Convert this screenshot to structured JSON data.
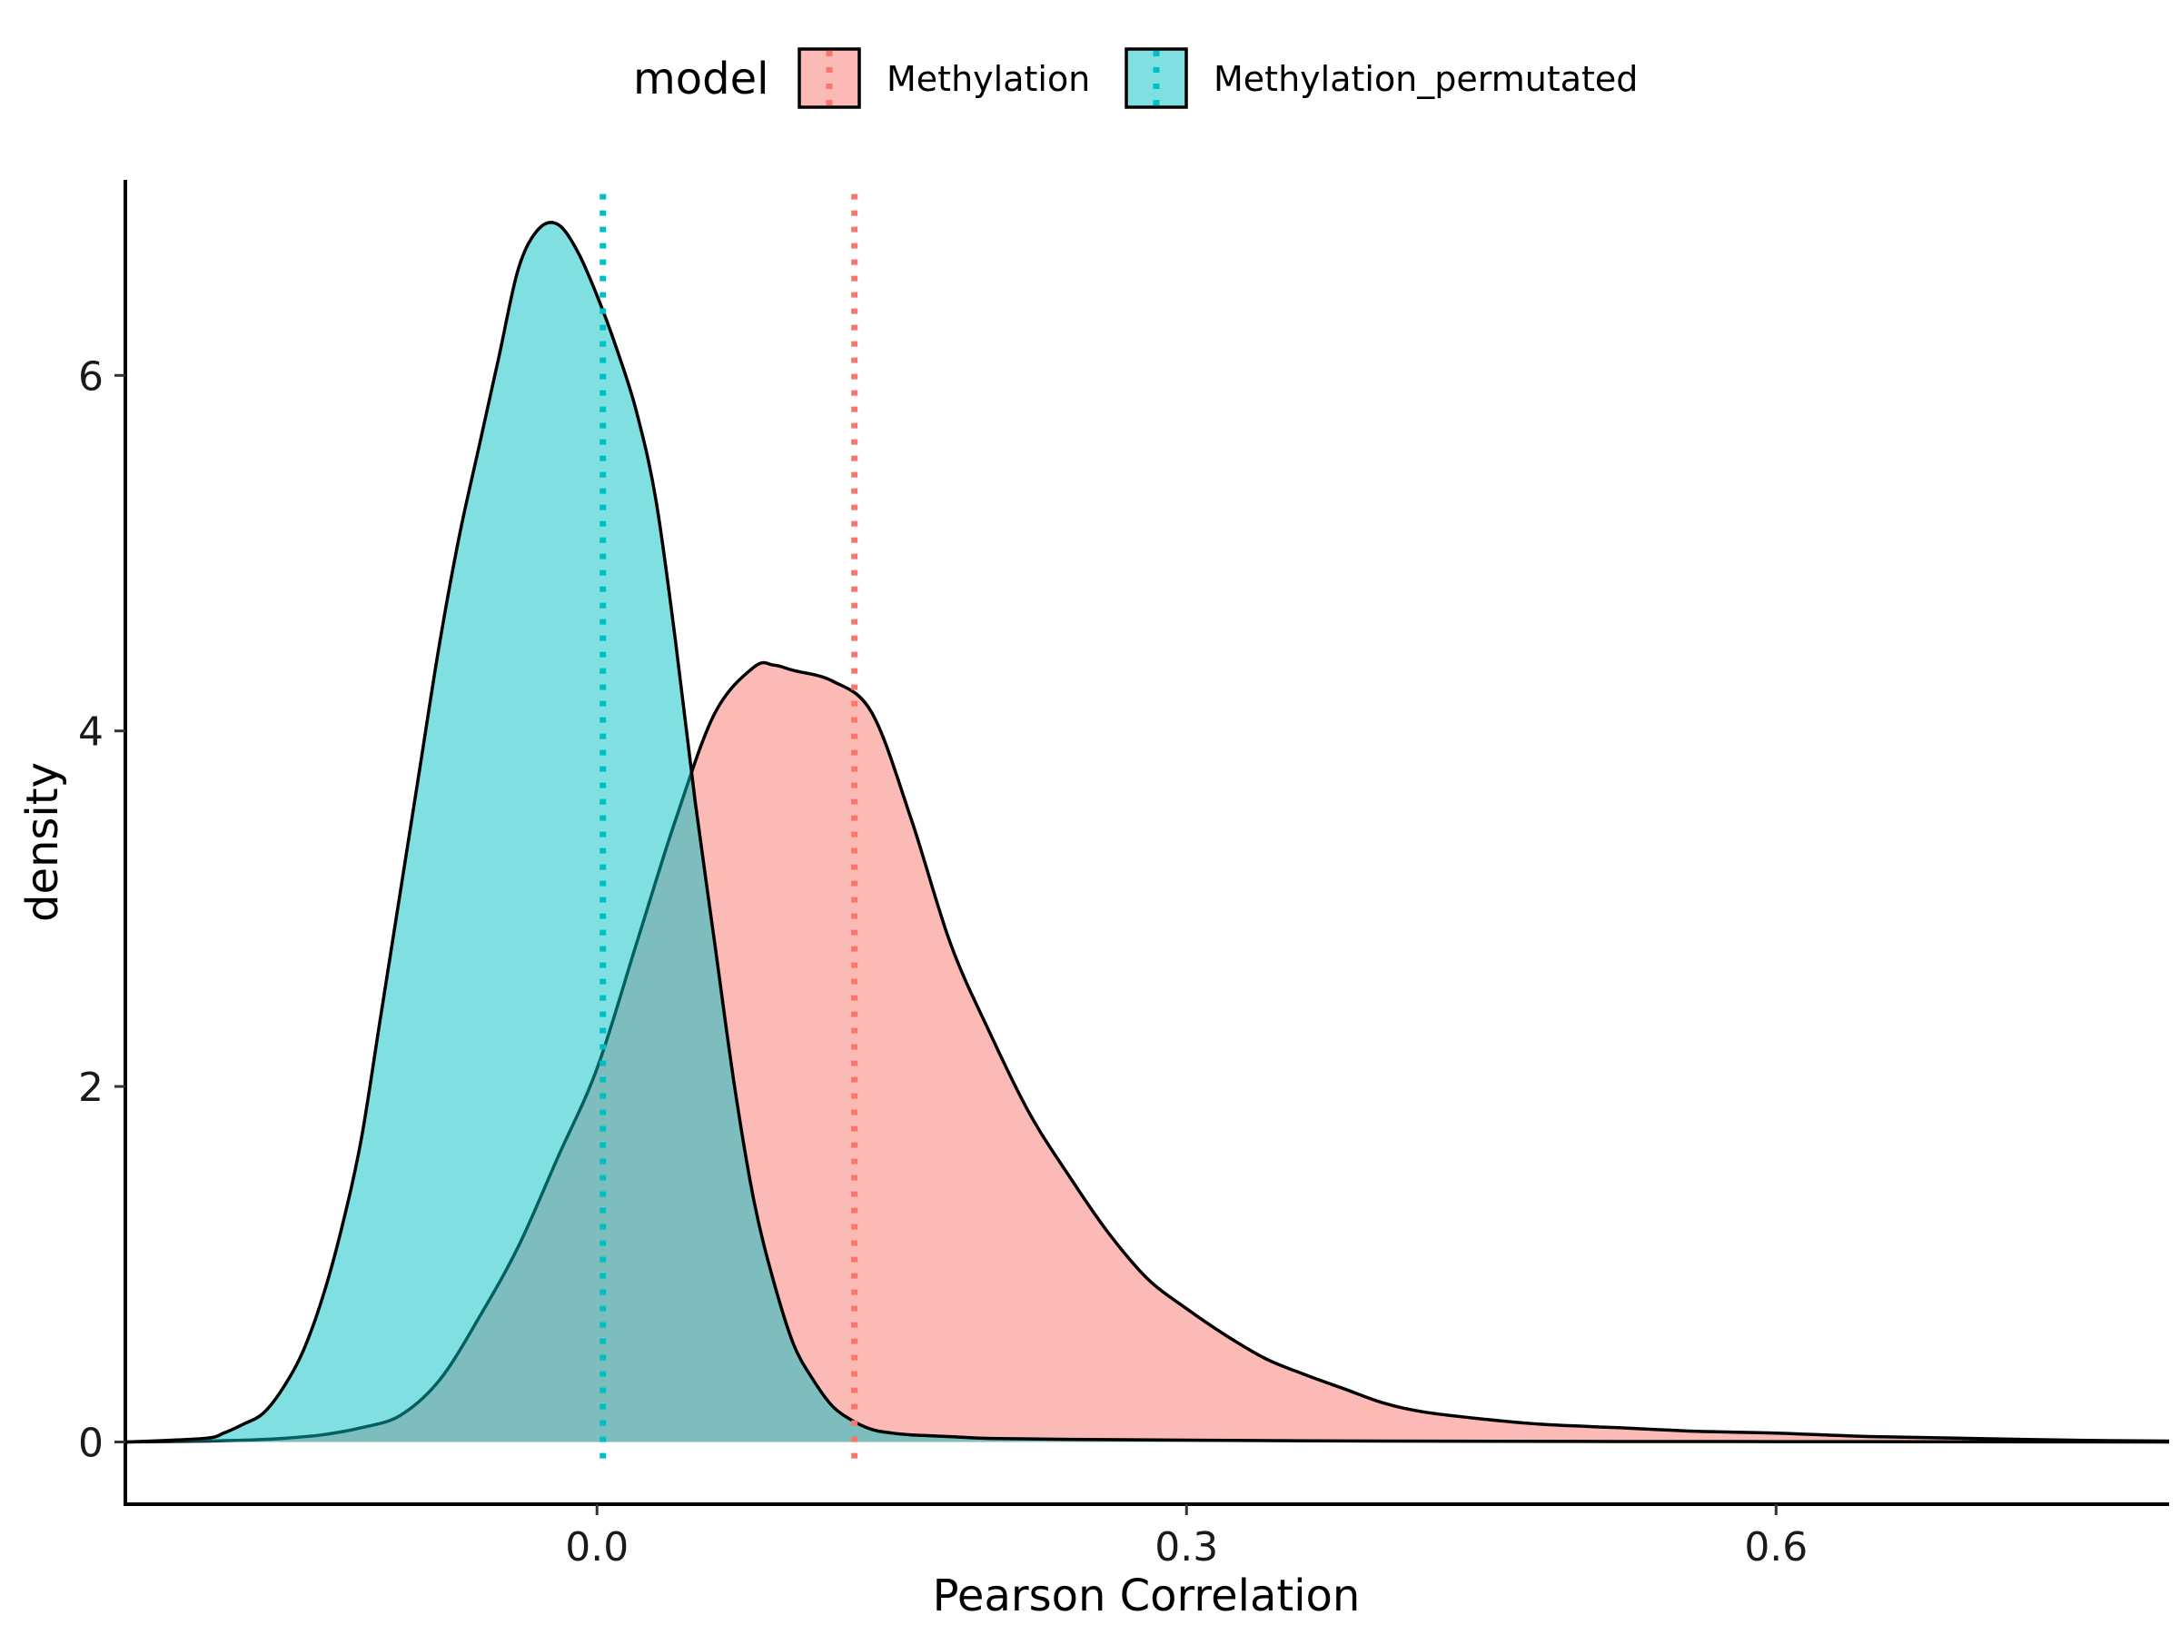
{
  "chart_data": {
    "type": "area",
    "xlabel": "Pearson Correlation",
    "ylabel": "density",
    "xlim": [
      -0.24,
      0.8
    ],
    "ylim": [
      -0.35,
      7.1
    ],
    "x_ticks": [
      0.0,
      0.3,
      0.6
    ],
    "x_tick_labels": [
      "0.0",
      "0.3",
      "0.6"
    ],
    "y_ticks": [
      0,
      2,
      4,
      6
    ],
    "y_tick_labels": [
      "0",
      "2",
      "4",
      "6"
    ],
    "grid": false,
    "legend": {
      "title": "model",
      "position": "top",
      "entries": [
        "Methylation",
        "Methylation_permutated"
      ]
    },
    "series": [
      {
        "name": "Methylation",
        "color": "#F8766D",
        "fill_opacity": 0.5,
        "mean_line": 0.131,
        "x": [
          -0.24,
          -0.2,
          -0.18,
          -0.16,
          -0.14,
          -0.12,
          -0.1,
          -0.08,
          -0.06,
          -0.04,
          -0.02,
          0.0,
          0.02,
          0.04,
          0.06,
          0.08,
          0.09,
          0.1,
          0.12,
          0.14,
          0.16,
          0.18,
          0.2,
          0.22,
          0.24,
          0.26,
          0.28,
          0.3,
          0.32,
          0.34,
          0.36,
          0.38,
          0.4,
          0.42,
          0.45,
          0.48,
          0.52,
          0.56,
          0.6,
          0.65,
          0.7,
          0.75,
          0.8
        ],
        "y": [
          0,
          0.005,
          0.01,
          0.02,
          0.04,
          0.08,
          0.15,
          0.35,
          0.7,
          1.1,
          1.6,
          2.1,
          2.8,
          3.5,
          4.1,
          4.36,
          4.37,
          4.34,
          4.28,
          4.1,
          3.5,
          2.8,
          2.3,
          1.85,
          1.5,
          1.18,
          0.92,
          0.75,
          0.6,
          0.47,
          0.38,
          0.3,
          0.22,
          0.17,
          0.13,
          0.1,
          0.08,
          0.06,
          0.05,
          0.03,
          0.02,
          0.01,
          0.005
        ]
      },
      {
        "name": "Methylation_permutated",
        "color": "#00BFC4",
        "fill_opacity": 0.5,
        "mean_line": 0.003,
        "x": [
          -0.24,
          -0.2,
          -0.19,
          -0.18,
          -0.17,
          -0.16,
          -0.15,
          -0.14,
          -0.13,
          -0.12,
          -0.11,
          -0.1,
          -0.09,
          -0.08,
          -0.07,
          -0.06,
          -0.05,
          -0.04,
          -0.03,
          -0.02,
          -0.01,
          0.0,
          0.01,
          0.02,
          0.03,
          0.04,
          0.05,
          0.06,
          0.07,
          0.08,
          0.09,
          0.1,
          0.11,
          0.12,
          0.13,
          0.14,
          0.15,
          0.16,
          0.18,
          0.2,
          0.24,
          0.3,
          0.4,
          0.5,
          0.6,
          0.7,
          0.8
        ],
        "y": [
          0,
          0.02,
          0.05,
          0.1,
          0.16,
          0.3,
          0.5,
          0.8,
          1.2,
          1.7,
          2.4,
          3.1,
          3.8,
          4.5,
          5.1,
          5.6,
          6.1,
          6.6,
          6.82,
          6.85,
          6.7,
          6.45,
          6.15,
          5.8,
          5.3,
          4.5,
          3.6,
          2.8,
          2.0,
          1.35,
          0.9,
          0.55,
          0.35,
          0.2,
          0.12,
          0.07,
          0.05,
          0.04,
          0.03,
          0.02,
          0.015,
          0.01,
          0.005,
          0.003,
          0.002,
          0.001,
          0
        ]
      }
    ]
  }
}
